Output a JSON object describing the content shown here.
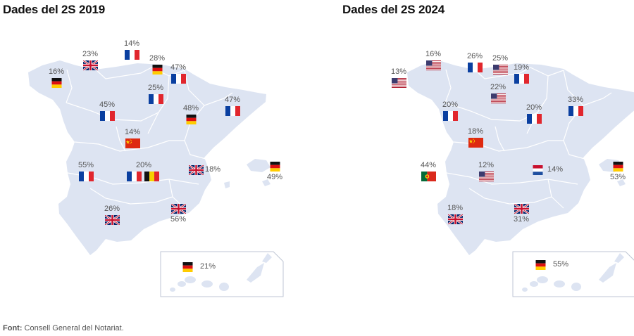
{
  "panels": [
    {
      "title": "Dades del 2S 2019",
      "markers": [
        {
          "pct": "14%",
          "country": "fr"
        },
        {
          "pct": "23%",
          "country": "gb"
        },
        {
          "pct": "28%",
          "country": "de"
        },
        {
          "pct": "16%",
          "country": "de"
        },
        {
          "pct": "47%",
          "country": "fr"
        },
        {
          "pct": "25%",
          "country": "fr"
        },
        {
          "pct": "45%",
          "country": "fr"
        },
        {
          "pct": "48%",
          "country": "de"
        },
        {
          "pct": "47%",
          "country": "fr"
        },
        {
          "pct": "14%",
          "country": "cn"
        },
        {
          "pct": "55%",
          "country": "fr"
        },
        {
          "pct": "20%",
          "country": "fr"
        },
        {
          "pct": "26%",
          "country": "gb"
        },
        {
          "pct": "56%",
          "country": "gb"
        },
        {
          "pct": "49%",
          "country": "de"
        },
        {
          "pct": "18%",
          "country": "gb"
        },
        {
          "pct": "21%",
          "country": "de"
        }
      ],
      "extra_flag": "be",
      "extra_flag_shares_label_with": "20%"
    },
    {
      "title": "Dades del 2S 2024",
      "markers": [
        {
          "pct": "16%",
          "country": "us"
        },
        {
          "pct": "26%",
          "country": "fr"
        },
        {
          "pct": "25%",
          "country": "us"
        },
        {
          "pct": "13%",
          "country": "us"
        },
        {
          "pct": "19%",
          "country": "fr"
        },
        {
          "pct": "22%",
          "country": "us"
        },
        {
          "pct": "20%",
          "country": "fr"
        },
        {
          "pct": "20%",
          "country": "fr"
        },
        {
          "pct": "33%",
          "country": "fr"
        },
        {
          "pct": "18%",
          "country": "cn"
        },
        {
          "pct": "44%",
          "country": "pt"
        },
        {
          "pct": "12%",
          "country": "us"
        },
        {
          "pct": "18%",
          "country": "gb"
        },
        {
          "pct": "31%",
          "country": "gb"
        },
        {
          "pct": "53%",
          "country": "de"
        },
        {
          "pct": "14%",
          "country": "nl"
        },
        {
          "pct": "55%",
          "country": "de"
        }
      ]
    }
  ],
  "source": {
    "label": "Font:",
    "text": " Consell General del Notariat."
  },
  "colors": {
    "land": "#dde4f2",
    "border": "#ffffff",
    "inset_frame": "#bfc6d4"
  }
}
